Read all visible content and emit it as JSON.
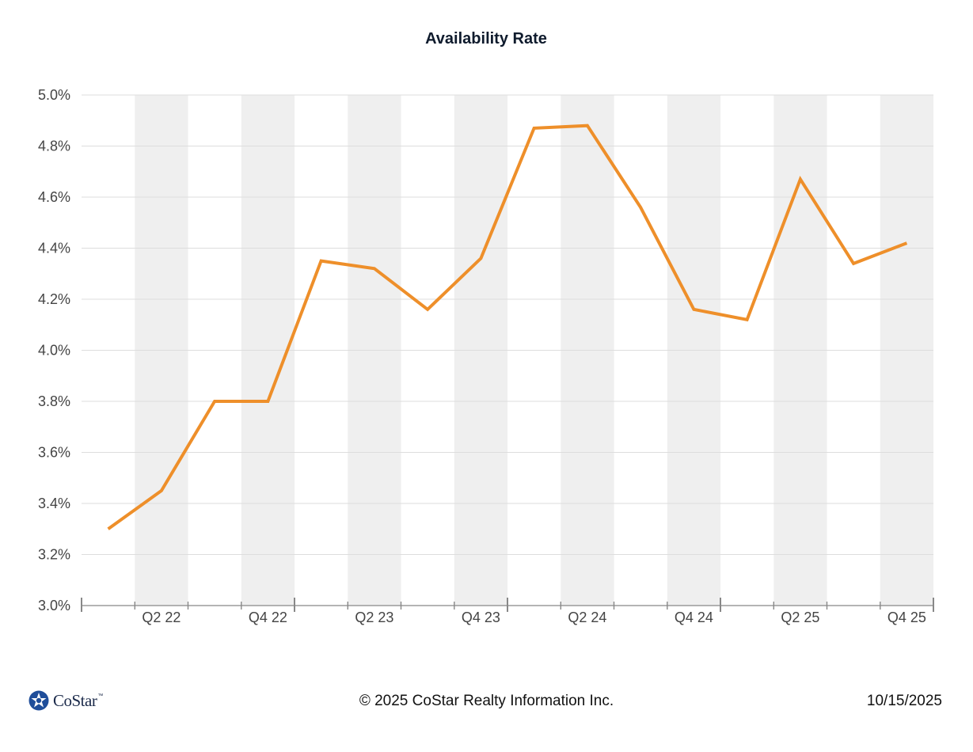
{
  "chart_data": {
    "type": "line",
    "title": "Availability Rate",
    "xlabel": "",
    "ylabel": "",
    "categories": [
      "Q1 22",
      "Q2 22",
      "Q3 22",
      "Q4 22",
      "Q1 23",
      "Q2 23",
      "Q3 23",
      "Q4 23",
      "Q1 24",
      "Q2 24",
      "Q3 24",
      "Q4 24",
      "Q1 25",
      "Q2 25",
      "Q3 25",
      "Q4 25"
    ],
    "x_tick_labels": [
      "Q2 22",
      "Q4 22",
      "Q2 23",
      "Q4 23",
      "Q2 24",
      "Q4 24",
      "Q2 25",
      "Q4 25"
    ],
    "y_tick_labels": [
      "3.0%",
      "3.2%",
      "3.4%",
      "3.6%",
      "3.8%",
      "4.0%",
      "4.2%",
      "4.4%",
      "4.6%",
      "4.8%",
      "5.0%"
    ],
    "ylim": [
      3.0,
      5.0
    ],
    "series": [
      {
        "values": [
          3.3,
          3.45,
          3.8,
          3.8,
          4.35,
          4.32,
          4.16,
          4.36,
          4.87,
          4.88,
          4.56,
          4.16,
          4.12,
          4.67,
          4.34,
          4.42
        ],
        "color": "#ee8f2a"
      }
    ],
    "grid": true,
    "legend": "none",
    "shaded_band_color": "#efefef"
  },
  "footer": {
    "logo_text": "CoStar",
    "logo_tm": "™",
    "copyright": "© 2025 CoStar Realty Information Inc.",
    "date": "10/15/2025"
  },
  "logo_icon": "costar-star-icon",
  "colors": {
    "line": "#ee8f2a",
    "band": "#efefef",
    "grid": "#dddddd",
    "axis": "#888888",
    "brand": "#1f4e9a"
  }
}
